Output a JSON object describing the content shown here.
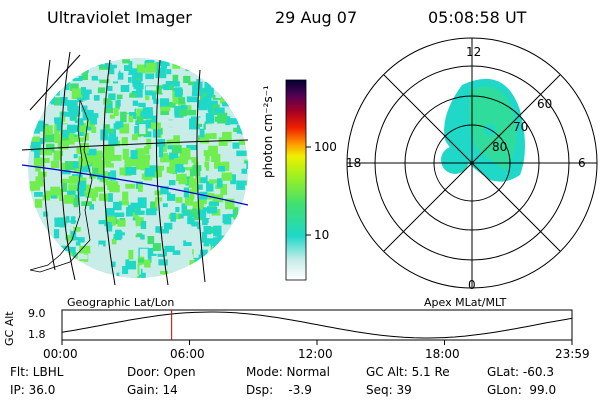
{
  "header": {
    "title": "Ultraviolet Imager",
    "date": "29 Aug 07",
    "time": "05:08:58 UT"
  },
  "colorbar": {
    "label": "photon cm⁻²s⁻¹",
    "ticks": [
      "100",
      "10"
    ]
  },
  "left_panel": {
    "caption": "Geographic Lat/Lon"
  },
  "right_panel": {
    "caption": "Apex MLat/MLT",
    "mlt_labels": {
      "top": "12",
      "bottom": "0",
      "left": "18",
      "right": "6"
    },
    "mlat_labels": [
      "60",
      "70",
      "80"
    ]
  },
  "altitude_plot": {
    "ylabel": "GC Alt",
    "yticks": [
      "9.0",
      "1.8"
    ],
    "xticks": [
      "00:00",
      "06:00",
      "12:00",
      "18:00",
      "23:59"
    ],
    "current_time_fraction": 0.215
  },
  "info": {
    "filter": "Flt: LBHL",
    "ip": "IP: 36.0",
    "door": "Door: Open",
    "gain": "Gain: 14",
    "mode": "Mode: Normal",
    "dsp": "Dsp:    -3.9",
    "gc_alt": "GC Alt: 5.1 Re",
    "seq": "Seq: 39",
    "glat": "GLat: -60.3",
    "glon": "GLon:  99.0"
  },
  "colors": {
    "mark": "#cc0000",
    "cyan": "#20d8c8",
    "green": "#40e070",
    "lightgreen": "#70ee50",
    "pale": "#c8ece8",
    "grid_blue": "#0000cc"
  }
}
